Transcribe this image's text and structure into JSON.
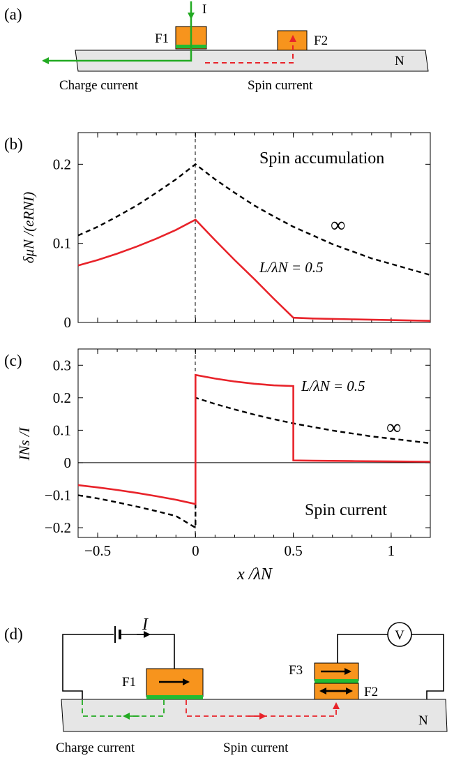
{
  "figure": {
    "panel_a": {
      "label": "(a)",
      "current_label": "I",
      "f1": "F1",
      "f2": "F2",
      "n": "N",
      "charge_current": "Charge current",
      "spin_current": "Spin current"
    },
    "panel_d": {
      "label": "(d)",
      "current_label": "I",
      "f1": "F1",
      "f2": "F2",
      "f3": "F3",
      "n": "N",
      "voltmeter": "V",
      "charge_current": "Charge current",
      "spin_current": "Spin current"
    },
    "colors": {
      "ferromagnet": "#f7941d",
      "channel": "#e6e6e6",
      "interface": "#22bb33",
      "spin": "#e8232a",
      "charge": "#22aa22"
    }
  },
  "chart_data": [
    {
      "type": "line",
      "panel_label": "(b)",
      "ylabel": "δμN /(eRNI)",
      "annotation": "Spin accumulation",
      "xlim": [
        -0.6,
        1.2
      ],
      "ylim": [
        0,
        0.24
      ],
      "yticks": [
        "0",
        "0.1",
        "0.2"
      ],
      "series": [
        {
          "name": "∞",
          "style": "dashed",
          "color": "#000000",
          "x": [
            -0.6,
            -0.5,
            -0.4,
            -0.3,
            -0.2,
            -0.1,
            0,
            0.1,
            0.2,
            0.3,
            0.4,
            0.5,
            0.6,
            0.7,
            0.8,
            0.9,
            1.0,
            1.1,
            1.2
          ],
          "y": [
            0.11,
            0.121,
            0.134,
            0.148,
            0.164,
            0.181,
            0.2,
            0.181,
            0.164,
            0.148,
            0.134,
            0.121,
            0.11,
            0.099,
            0.09,
            0.081,
            0.074,
            0.067,
            0.06
          ]
        },
        {
          "name": "L/λN = 0.5",
          "style": "solid",
          "color": "#e8232a",
          "x": [
            -0.6,
            -0.5,
            -0.4,
            -0.3,
            -0.2,
            -0.1,
            0,
            0.1,
            0.2,
            0.3,
            0.4,
            0.5,
            0.6,
            0.8,
            1.0,
            1.2
          ],
          "y": [
            0.072,
            0.079,
            0.087,
            0.096,
            0.106,
            0.117,
            0.13,
            0.104,
            0.079,
            0.055,
            0.03,
            0.006,
            0.005,
            0.004,
            0.003,
            0.002
          ]
        }
      ]
    },
    {
      "type": "line",
      "panel_label": "(c)",
      "ylabel": "INs /I",
      "xlabel": "x /λN",
      "annotation": "Spin current",
      "xlim": [
        -0.6,
        1.2
      ],
      "ylim": [
        -0.23,
        0.35
      ],
      "xticks": [
        "−0.5",
        "0",
        "0.5",
        "1"
      ],
      "yticks": [
        "−0.2",
        "−0.1",
        "0",
        "0.1",
        "0.2",
        "0.3"
      ],
      "series": [
        {
          "name": "∞",
          "style": "dashed",
          "color": "#000000",
          "x": [
            -0.6,
            -0.5,
            -0.4,
            -0.3,
            -0.2,
            -0.1,
            0,
            0,
            0.1,
            0.2,
            0.3,
            0.4,
            0.5,
            0.6,
            0.7,
            0.8,
            0.9,
            1.0,
            1.1,
            1.2
          ],
          "y": [
            -0.1,
            -0.11,
            -0.122,
            -0.135,
            -0.149,
            -0.164,
            -0.2,
            0.2,
            0.181,
            0.164,
            0.148,
            0.134,
            0.121,
            0.11,
            0.099,
            0.09,
            0.081,
            0.074,
            0.067,
            0.06
          ]
        },
        {
          "name": "L/λN = 0.5",
          "style": "solid",
          "color": "#e8232a",
          "x": [
            -0.6,
            -0.5,
            -0.4,
            -0.3,
            -0.2,
            -0.1,
            0,
            0,
            0.1,
            0.2,
            0.3,
            0.4,
            0.5,
            0.5,
            0.6,
            0.8,
            1.0,
            1.2
          ],
          "y": [
            -0.069,
            -0.076,
            -0.084,
            -0.093,
            -0.103,
            -0.114,
            -0.127,
            0.27,
            0.259,
            0.25,
            0.243,
            0.238,
            0.236,
            0.007,
            0.006,
            0.005,
            0.004,
            0.003
          ]
        }
      ]
    }
  ]
}
